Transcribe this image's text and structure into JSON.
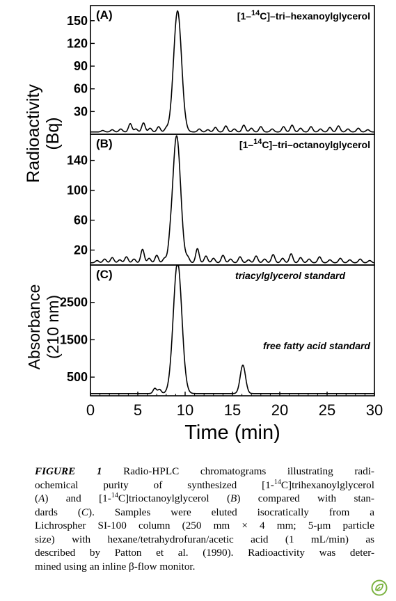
{
  "chart_data": [
    {
      "type": "line",
      "panel_label": "(A)",
      "annotation": "[1-14C]-tri-hexanoylglycerol",
      "annotation_parts": [
        "[1–",
        "14",
        "C]–tri–hexanoylglycerol"
      ],
      "ylabel": "Radioactivity (Bq)",
      "ylabel_lines": [
        "Radioactivity",
        "(Bq)"
      ],
      "yticks": [
        30,
        60,
        90,
        120,
        150
      ],
      "ylim": [
        0,
        170
      ],
      "xlim": [
        0,
        30
      ],
      "baseline": 3,
      "noise": [
        [
          1.3,
          2
        ],
        [
          2.3,
          3
        ],
        [
          3.2,
          4
        ],
        [
          4.2,
          11
        ],
        [
          4.8,
          4
        ],
        [
          5.6,
          12
        ],
        [
          6.3,
          5
        ],
        [
          7.2,
          7
        ],
        [
          8.0,
          4
        ],
        [
          11.5,
          4
        ],
        [
          12.4,
          3
        ],
        [
          13.2,
          6
        ],
        [
          14.3,
          8
        ],
        [
          15.2,
          4
        ],
        [
          16.2,
          9
        ],
        [
          17.0,
          5
        ],
        [
          18.0,
          7
        ],
        [
          19.2,
          4
        ],
        [
          20.4,
          7
        ],
        [
          21.3,
          9
        ],
        [
          22.2,
          5
        ],
        [
          23.3,
          7
        ],
        [
          24.3,
          4
        ],
        [
          25.3,
          6
        ],
        [
          26.2,
          8
        ],
        [
          27.2,
          4
        ],
        [
          28.3,
          5
        ],
        [
          29.3,
          3
        ]
      ],
      "peaks": [
        {
          "center": 9.2,
          "height": 160,
          "width": 0.42
        }
      ]
    },
    {
      "type": "line",
      "panel_label": "(B)",
      "annotation": "[1-14C]-tri-octanoylglycerol",
      "annotation_parts": [
        "[1–",
        "14",
        "C]–tri–octanoylglycerol"
      ],
      "yticks": [
        20,
        60,
        100,
        140
      ],
      "ylim": [
        0,
        175
      ],
      "xlim": [
        0,
        30
      ],
      "baseline": 3,
      "noise": [
        [
          0.7,
          3
        ],
        [
          1.5,
          5
        ],
        [
          2.3,
          7
        ],
        [
          3.1,
          4
        ],
        [
          3.8,
          8
        ],
        [
          4.6,
          5
        ],
        [
          5.5,
          18
        ],
        [
          6.2,
          6
        ],
        [
          7.0,
          10
        ],
        [
          7.8,
          5
        ],
        [
          8.4,
          8
        ],
        [
          10.3,
          6
        ],
        [
          11.3,
          19
        ],
        [
          12.2,
          9
        ],
        [
          13.0,
          6
        ],
        [
          14.0,
          10
        ],
        [
          14.8,
          5
        ],
        [
          15.8,
          8
        ],
        [
          16.7,
          4
        ],
        [
          17.5,
          9
        ],
        [
          18.4,
          5
        ],
        [
          19.3,
          11
        ],
        [
          20.3,
          6
        ],
        [
          21.2,
          12
        ],
        [
          22.2,
          7
        ],
        [
          23.1,
          5
        ],
        [
          24.2,
          8
        ],
        [
          25.3,
          4
        ],
        [
          26.4,
          6
        ],
        [
          27.4,
          4
        ],
        [
          28.5,
          5
        ],
        [
          29.5,
          3
        ]
      ],
      "peaks": [
        {
          "center": 9.1,
          "height": 170,
          "width": 0.42
        }
      ]
    },
    {
      "type": "line",
      "panel_label": "(C)",
      "annotation": "triacylglycerol standard",
      "annotation2": "free fatty acid standard",
      "ylabel": "Absorbance (210 nm)",
      "ylabel_lines": [
        "Absorbance",
        "(210 nm)"
      ],
      "yticks": [
        500,
        1500,
        2500
      ],
      "ylim": [
        0,
        3500
      ],
      "xlim": [
        0,
        30
      ],
      "xticks": [
        0,
        5,
        10,
        15,
        20,
        25,
        30
      ],
      "xlabel": "Time (min)",
      "baseline": 60,
      "noise": [
        [
          6.8,
          140
        ],
        [
          7.3,
          110
        ]
      ],
      "peaks": [
        {
          "center": 9.2,
          "height": 3520,
          "width": 0.45
        },
        {
          "center": 16.1,
          "height": 760,
          "width": 0.28
        }
      ]
    }
  ],
  "caption": {
    "fig_label": "FIGURE 1",
    "lines": [
      [
        {
          "t": "Radio-HPLC chromatograms illustrating radi-"
        }
      ],
      [
        {
          "t": "ochemical purity of synthesized [1-"
        },
        {
          "sup": "14"
        },
        {
          "t": "C]trihexanoylglycerol"
        }
      ],
      [
        {
          "t": "("
        },
        {
          "i": "A"
        },
        {
          "t": ") and [1-"
        },
        {
          "sup": "14"
        },
        {
          "t": "C]trioctanoylglycerol ("
        },
        {
          "i": "B"
        },
        {
          "t": ") compared with stan-"
        }
      ],
      [
        {
          "t": "dards ("
        },
        {
          "i": "C"
        },
        {
          "t": "). Samples were eluted isocratically from a"
        }
      ],
      [
        {
          "t": "Lichrospher SI-100 column (250 mm × 4 mm; 5-μm particle"
        }
      ],
      [
        {
          "t": "size) with hexane/tetrahydrofuran/acetic acid (1 mL/min) as"
        }
      ],
      [
        {
          "t": "described by Patton et al. (1990). Radioactivity was deter-"
        }
      ],
      [
        {
          "t": "mined using an inline β-flow monitor."
        }
      ]
    ]
  },
  "colors": {
    "ink": "#000000",
    "badge": "#7cb342"
  },
  "icons": {
    "badge": "leaf-badge-icon"
  }
}
